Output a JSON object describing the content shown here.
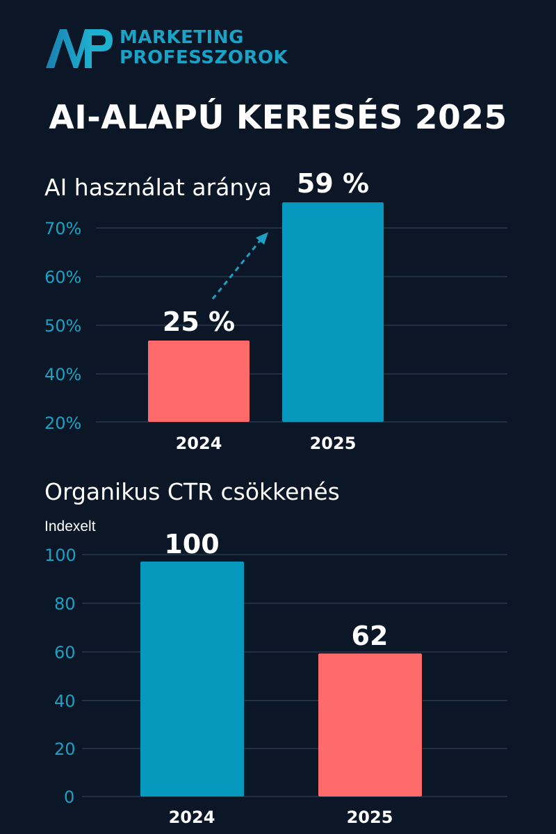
{
  "brand": {
    "line1": "MARKETING",
    "line2": "PROFESSZOROK",
    "accent": "#1aa3c7",
    "logo_icon": "mp-monogram-icon"
  },
  "title": "AI-ALAPÚ KERESÉS 2025",
  "colors": {
    "background": "#0b1726",
    "coral": "#ff6b6b",
    "teal": "#0699bd",
    "tick": "#1ea0c3"
  },
  "chart_data": [
    {
      "type": "bar",
      "title": "AI használat aránya",
      "categories": [
        "2024",
        "2025"
      ],
      "values": [
        25,
        59
      ],
      "data_labels": [
        "25 %",
        "59 %"
      ],
      "bar_colors": [
        "#ff6b6b",
        "#0699bd"
      ],
      "ytick_labels": [
        "70%",
        "60%",
        "50%",
        "40%",
        "20%"
      ],
      "ylabel": "",
      "xlabel": "",
      "grid": true,
      "annotation": "dashed-arrow-2024-to-2025"
    },
    {
      "type": "bar",
      "title": "Organikus CTR csökkenés",
      "categories": [
        "2024",
        "2025"
      ],
      "values": [
        100,
        62
      ],
      "data_labels": [
        "100",
        "62"
      ],
      "bar_colors": [
        "#0699bd",
        "#ff6b6b"
      ],
      "ytick_labels": [
        "100",
        "80",
        "60",
        "40",
        "20",
        "0"
      ],
      "ylabel": "Indexelt",
      "ylim": [
        0,
        100
      ],
      "xlabel": "",
      "grid": true
    }
  ]
}
